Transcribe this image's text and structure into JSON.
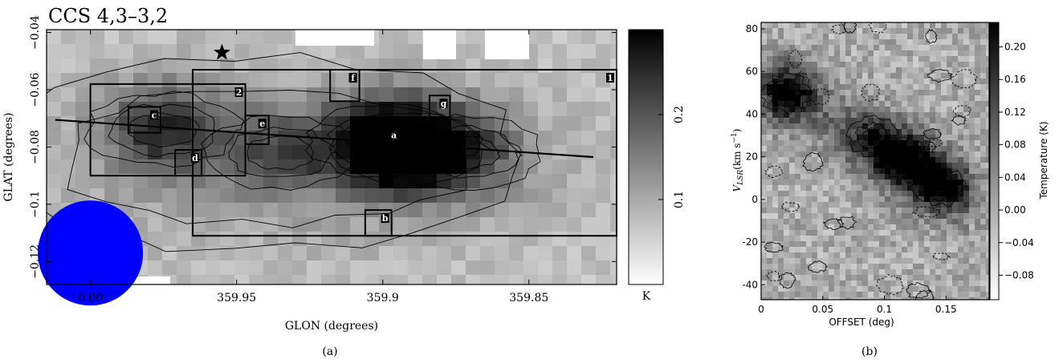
{
  "figure": {
    "caption_a": "(a)",
    "caption_b": "(b)"
  },
  "chart_data": [
    {
      "type": "heatmap",
      "title": "CCS 4,3–3,2",
      "xlabel": "GLON (degrees)",
      "ylabel": "GLAT (degrees)",
      "xlim": [
        0.015,
        359.82
      ],
      "ylim": [
        -0.128,
        -0.039
      ],
      "x_ticks": [
        {
          "value": 0.0,
          "label": "0.00"
        },
        {
          "value": 359.95,
          "label": "359.95"
        },
        {
          "value": 359.9,
          "label": "359.9"
        },
        {
          "value": 359.85,
          "label": "359.85"
        }
      ],
      "y_ticks": [
        {
          "value": -0.04,
          "label": "−0.04"
        },
        {
          "value": -0.06,
          "label": "−0.06"
        },
        {
          "value": -0.08,
          "label": "−0.08"
        },
        {
          "value": -0.1,
          "label": "−0.1"
        },
        {
          "value": -0.12,
          "label": "−0.12"
        }
      ],
      "colorbar": {
        "unit": "K",
        "range": [
          0.0,
          0.3
        ],
        "ticks": [
          {
            "value": 0.1,
            "label": "0.1"
          },
          {
            "value": 0.2,
            "label": "0.2"
          }
        ],
        "colormap": "gray_r"
      },
      "regions": [
        {
          "label": "1",
          "lon_range": [
            359.965,
            359.82
          ],
          "lat_range": [
            -0.053,
            -0.111
          ]
        },
        {
          "label": "2",
          "lon_range": [
            0.0,
            359.947
          ],
          "lat_range": [
            -0.058,
            -0.09
          ]
        },
        {
          "label": "a",
          "lon_range": [
            359.906,
            359.894
          ],
          "lat_range": [
            -0.073,
            -0.081
          ]
        },
        {
          "label": "b",
          "lon_range": [
            359.906,
            359.897
          ],
          "lat_range": [
            -0.102,
            -0.111
          ]
        },
        {
          "label": "c",
          "lon_range": [
            359.987,
            359.976
          ],
          "lat_range": [
            -0.066,
            -0.075
          ]
        },
        {
          "label": "d",
          "lon_range": [
            359.971,
            359.962
          ],
          "lat_range": [
            -0.081,
            -0.09
          ]
        },
        {
          "label": "e",
          "lon_range": [
            359.947,
            359.939
          ],
          "lat_range": [
            -0.069,
            -0.079
          ]
        },
        {
          "label": "f",
          "lon_range": [
            359.918,
            359.908
          ],
          "lat_range": [
            -0.053,
            -0.064
          ]
        },
        {
          "label": "g",
          "lon_range": [
            359.884,
            359.877
          ],
          "lat_range": [
            -0.062,
            -0.079
          ]
        }
      ],
      "cut_line": {
        "start": [
          0.012,
          -0.0705
        ],
        "end": [
          359.828,
          -0.0835
        ]
      },
      "star_marker": [
        359.955,
        -0.047
      ],
      "beam": {
        "lon": 0.0,
        "lat": -0.117,
        "diameter_deg": 0.018,
        "color": "#0000ff"
      },
      "peaks": [
        {
          "lon": 359.975,
          "lat": -0.074,
          "value": 0.22
        },
        {
          "lon": 359.9,
          "lat": -0.078,
          "value": 0.24
        },
        {
          "lon": 359.891,
          "lat": -0.081,
          "value": 0.23
        },
        {
          "lon": 359.935,
          "lat": -0.082,
          "value": 0.17
        },
        {
          "lon": 359.872,
          "lat": -0.082,
          "value": 0.18
        }
      ]
    },
    {
      "type": "heatmap",
      "xlabel": "OFFSET (deg)",
      "ylabel": "V_LSR (km s⁻¹)",
      "xlim": [
        0.0,
        0.185
      ],
      "ylim": [
        -47,
        83
      ],
      "x_ticks": [
        {
          "value": 0.0,
          "label": "0"
        },
        {
          "value": 0.05,
          "label": "0.05"
        },
        {
          "value": 0.1,
          "label": "0.1"
        },
        {
          "value": 0.15,
          "label": "0.15"
        }
      ],
      "y_ticks": [
        {
          "value": 80,
          "label": "80"
        },
        {
          "value": 60,
          "label": "60"
        },
        {
          "value": 40,
          "label": "40"
        },
        {
          "value": 20,
          "label": "20"
        },
        {
          "value": 0,
          "label": "0"
        },
        {
          "value": -20,
          "label": "-20"
        },
        {
          "value": -40,
          "label": "-40"
        }
      ],
      "colorbar": {
        "label": "Temperature (K)",
        "range": [
          -0.11,
          0.23
        ],
        "ticks": [
          {
            "value": 0.2,
            "label": "0.20"
          },
          {
            "value": 0.16,
            "label": "0.16"
          },
          {
            "value": 0.12,
            "label": "0.12"
          },
          {
            "value": 0.08,
            "label": "0.08"
          },
          {
            "value": 0.04,
            "label": "0.04"
          },
          {
            "value": 0.0,
            "label": "0.00"
          },
          {
            "value": -0.04,
            "label": "−0.04"
          },
          {
            "value": -0.08,
            "label": "−0.08"
          }
        ],
        "colormap": "gray_r"
      },
      "features": [
        {
          "offset": 0.02,
          "vlsr": 50,
          "value": 0.21
        },
        {
          "offset": 0.115,
          "vlsr": 19,
          "value": 0.22
        },
        {
          "offset": 0.145,
          "vlsr": 6,
          "value": 0.2
        },
        {
          "offset": 0.09,
          "vlsr": 30,
          "value": 0.11
        }
      ]
    }
  ]
}
